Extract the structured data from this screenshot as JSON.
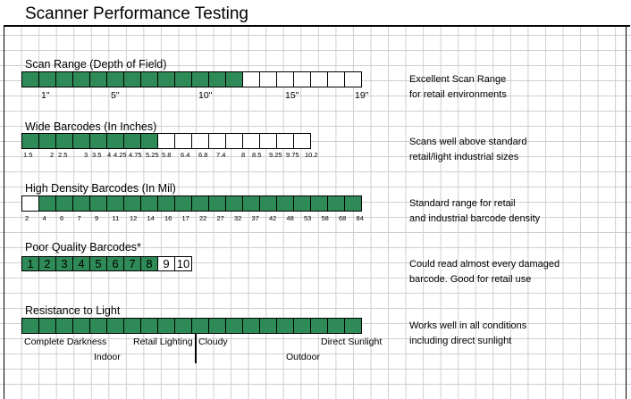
{
  "title": "Scanner Performance Testing",
  "colors": {
    "filled": "#2e8b57",
    "empty": "#ffffff",
    "grid": "#cfcfcf"
  },
  "sections": {
    "scan_range": {
      "heading": "Scan Range (Depth of Field)",
      "cells_total": 20,
      "cells_filled": 13,
      "ticks": [
        "1\"",
        "5\"",
        "10\"",
        "15\"",
        "19\""
      ],
      "note": [
        "Excellent Scan Range",
        "for retail environments"
      ]
    },
    "wide": {
      "heading": "Wide Barcodes (In Inches)",
      "cells_total": 17,
      "cells_filled": 8,
      "ticks": [
        "1.5",
        "2",
        "2.5",
        "3",
        "3.5",
        "4",
        "4.25",
        "4.75",
        "5.25",
        "5.8",
        "6.4",
        "6.8",
        "7.4",
        "8",
        "8.5",
        "9.25",
        "9.75",
        "10.2"
      ],
      "note": [
        "Scans well above standard",
        "retail/light industrial sizes"
      ]
    },
    "high_density": {
      "heading": "High Density Barcodes (In Mil)",
      "cells_total": 20,
      "cells_filled": 19,
      "filled_from": 2,
      "ticks": [
        "2",
        "4",
        "6",
        "7",
        "9",
        "11",
        "12",
        "14",
        "16",
        "17",
        "22",
        "27",
        "32",
        "37",
        "42",
        "48",
        "53",
        "58",
        "68",
        "84"
      ],
      "note": [
        "Standard range for retail",
        "and industrial barcode density"
      ]
    },
    "poor_quality": {
      "heading": "Poor Quality Barcodes*",
      "cells": [
        "1",
        "2",
        "3",
        "4",
        "5",
        "6",
        "7",
        "8",
        "9",
        "10"
      ],
      "cells_filled": 8,
      "note": [
        "Could read almost every damaged",
        "barcode. Good for retail use"
      ]
    },
    "light": {
      "heading": "Resistance to Light",
      "cells_total": 20,
      "cells_filled": 20,
      "labels_top": [
        "Complete Darkness",
        "Retail Lighting",
        "Cloudy",
        "Direct Sunlight"
      ],
      "labels_bottom": [
        "Indoor",
        "Outdoor"
      ],
      "note": [
        "Works well in all conditions",
        "including direct sunlight"
      ]
    }
  }
}
